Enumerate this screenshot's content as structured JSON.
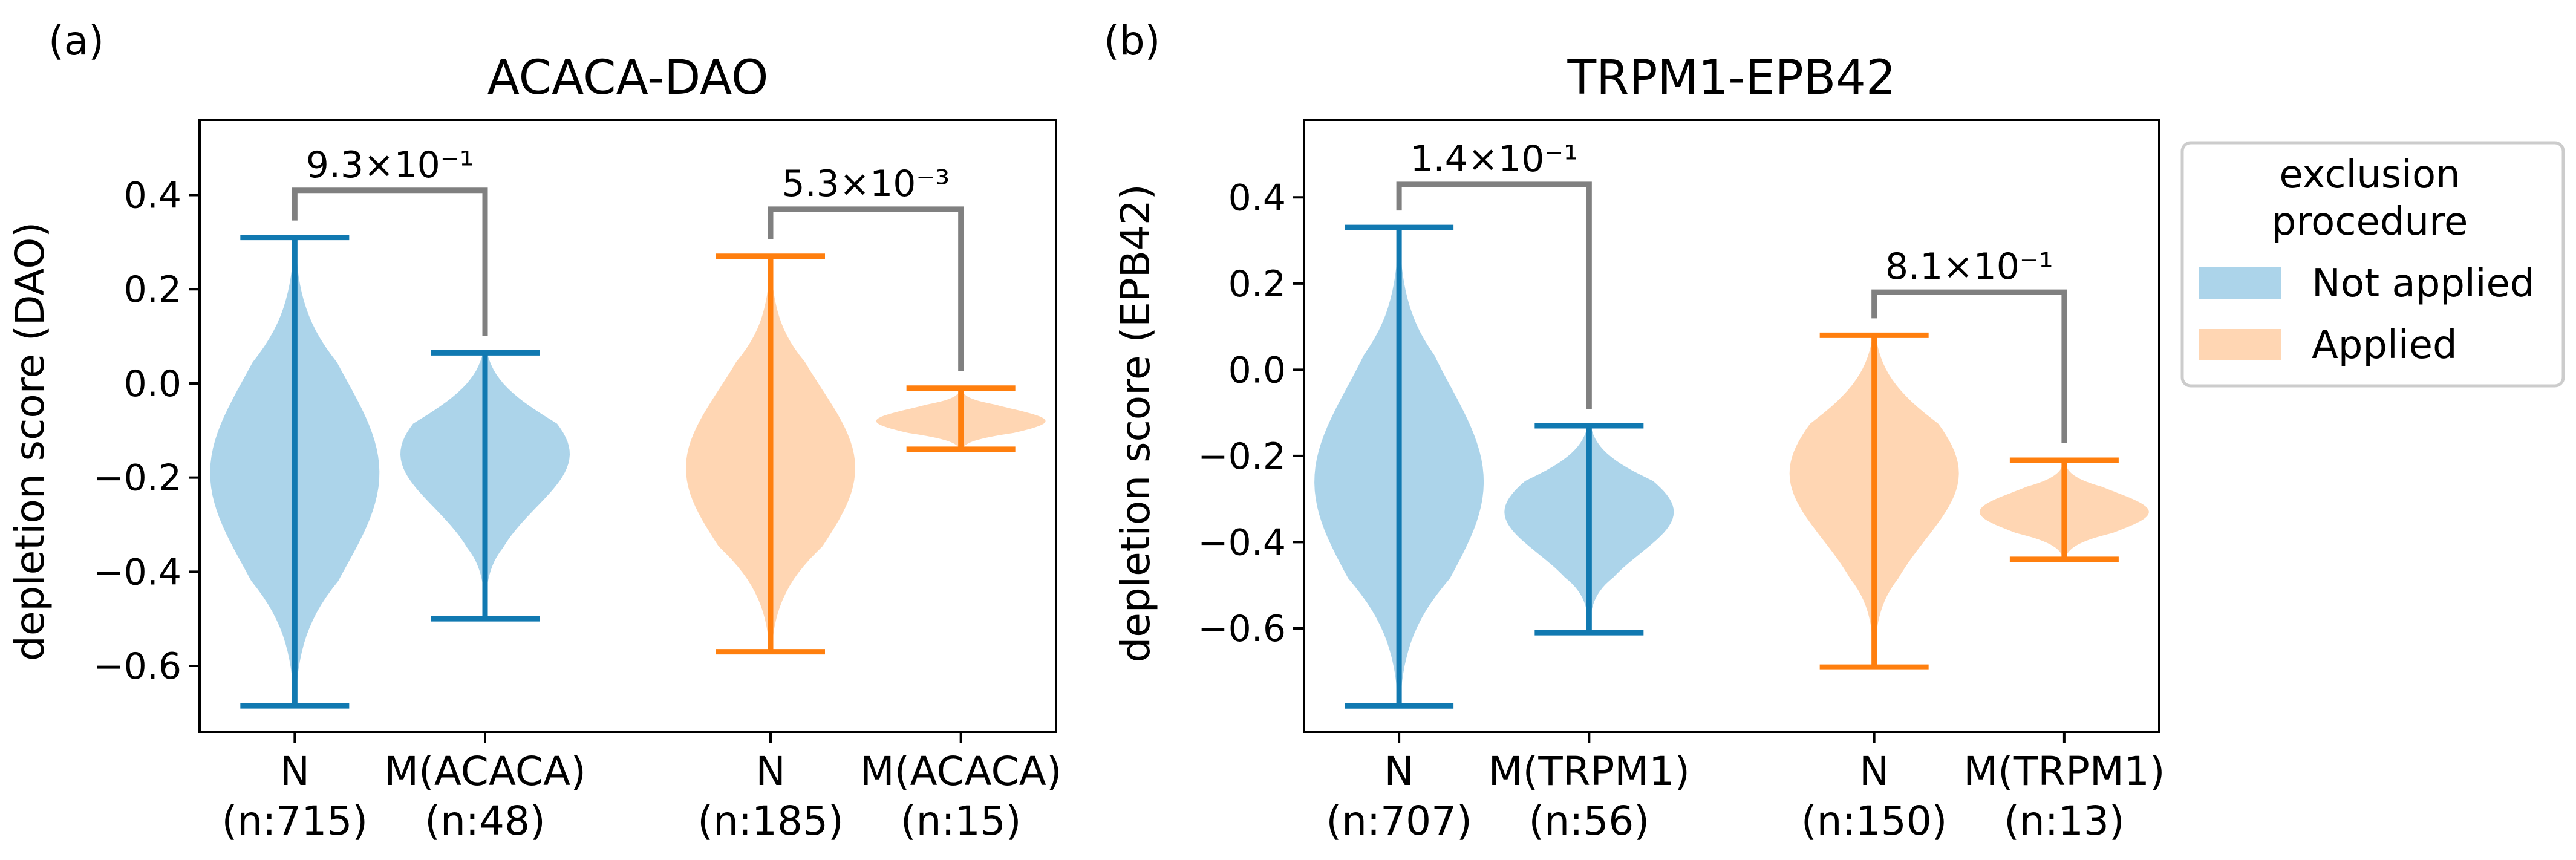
{
  "chart_data": [
    {
      "type": "violin",
      "panel_label": "(a)",
      "title": "ACACA-DAO",
      "ylabel": "depletion score (DAO)",
      "ylim": [
        -0.74,
        0.56
      ],
      "yticks": [
        -0.6,
        -0.4,
        -0.2,
        0.0,
        0.2,
        0.4
      ],
      "ytick_labels": [
        "−0.6",
        "−0.4",
        "−0.2",
        "0.0",
        "0.2",
        "0.4"
      ],
      "groups": [
        {
          "category": "N",
          "count": "(n:715)",
          "condition": "Not applied",
          "min": -0.685,
          "max": 0.31,
          "x": 1,
          "mode": -0.19,
          "width_scale": 1.0
        },
        {
          "category": "M(ACACA)",
          "count": "(n:48)",
          "condition": "Not applied",
          "min": -0.5,
          "max": 0.065,
          "x": 2,
          "mode": -0.15,
          "width_scale": 1.0
        },
        {
          "category": "N",
          "count": "(n:185)",
          "condition": "Applied",
          "min": -0.57,
          "max": 0.27,
          "x": 3.5,
          "mode": -0.18,
          "width_scale": 1.0
        },
        {
          "category": "M(ACACA)",
          "count": "(n:15)",
          "condition": "Applied",
          "min": -0.14,
          "max": -0.01,
          "x": 4.5,
          "mode": -0.08,
          "width_scale": 1.0
        }
      ],
      "comparisons": [
        {
          "pair": [
            1,
            2
          ],
          "pvalue": "9.3×10⁻¹",
          "level": 0.41
        },
        {
          "pair": [
            3.5,
            4.5
          ],
          "pvalue": "5.3×10⁻³",
          "level": 0.37
        }
      ]
    },
    {
      "type": "violin",
      "panel_label": "(b)",
      "title": "TRPM1-EPB42",
      "ylabel": "depletion score (EPB42)",
      "ylim": [
        -0.84,
        0.58
      ],
      "yticks": [
        -0.6,
        -0.4,
        -0.2,
        0.0,
        0.2,
        0.4
      ],
      "ytick_labels": [
        "−0.6",
        "−0.4",
        "−0.2",
        "0.0",
        "0.2",
        "0.4"
      ],
      "groups": [
        {
          "category": "N",
          "count": "(n:707)",
          "condition": "Not applied",
          "min": -0.78,
          "max": 0.33,
          "x": 1,
          "mode": -0.26,
          "width_scale": 1.0
        },
        {
          "category": "M(TRPM1)",
          "count": "(n:56)",
          "condition": "Not applied",
          "min": -0.61,
          "max": -0.13,
          "x": 2,
          "mode": -0.33,
          "width_scale": 1.0
        },
        {
          "category": "N",
          "count": "(n:150)",
          "condition": "Applied",
          "min": -0.69,
          "max": 0.08,
          "x": 3.5,
          "mode": -0.24,
          "width_scale": 1.0
        },
        {
          "category": "M(TRPM1)",
          "count": "(n:13)",
          "condition": "Applied",
          "min": -0.44,
          "max": -0.21,
          "x": 4.5,
          "mode": -0.33,
          "width_scale": 1.0
        }
      ],
      "comparisons": [
        {
          "pair": [
            1,
            2
          ],
          "pvalue": "1.4×10⁻¹",
          "level": 0.43
        },
        {
          "pair": [
            3.5,
            4.5
          ],
          "pvalue": "8.1×10⁻¹",
          "level": 0.18
        }
      ]
    }
  ],
  "legend": {
    "title_line1": "exclusion",
    "title_line2": "procedure",
    "entries": [
      {
        "label": "Not applied",
        "color": "#acd4ea"
      },
      {
        "label": "Applied",
        "color": "#ffd6b3"
      }
    ]
  },
  "colors": {
    "Not applied": {
      "fill": "#acd4ea",
      "line": "#1179b1"
    },
    "Applied": {
      "fill": "#ffd6b3",
      "line": "#ff7f0e"
    },
    "bracket": "#808080"
  }
}
